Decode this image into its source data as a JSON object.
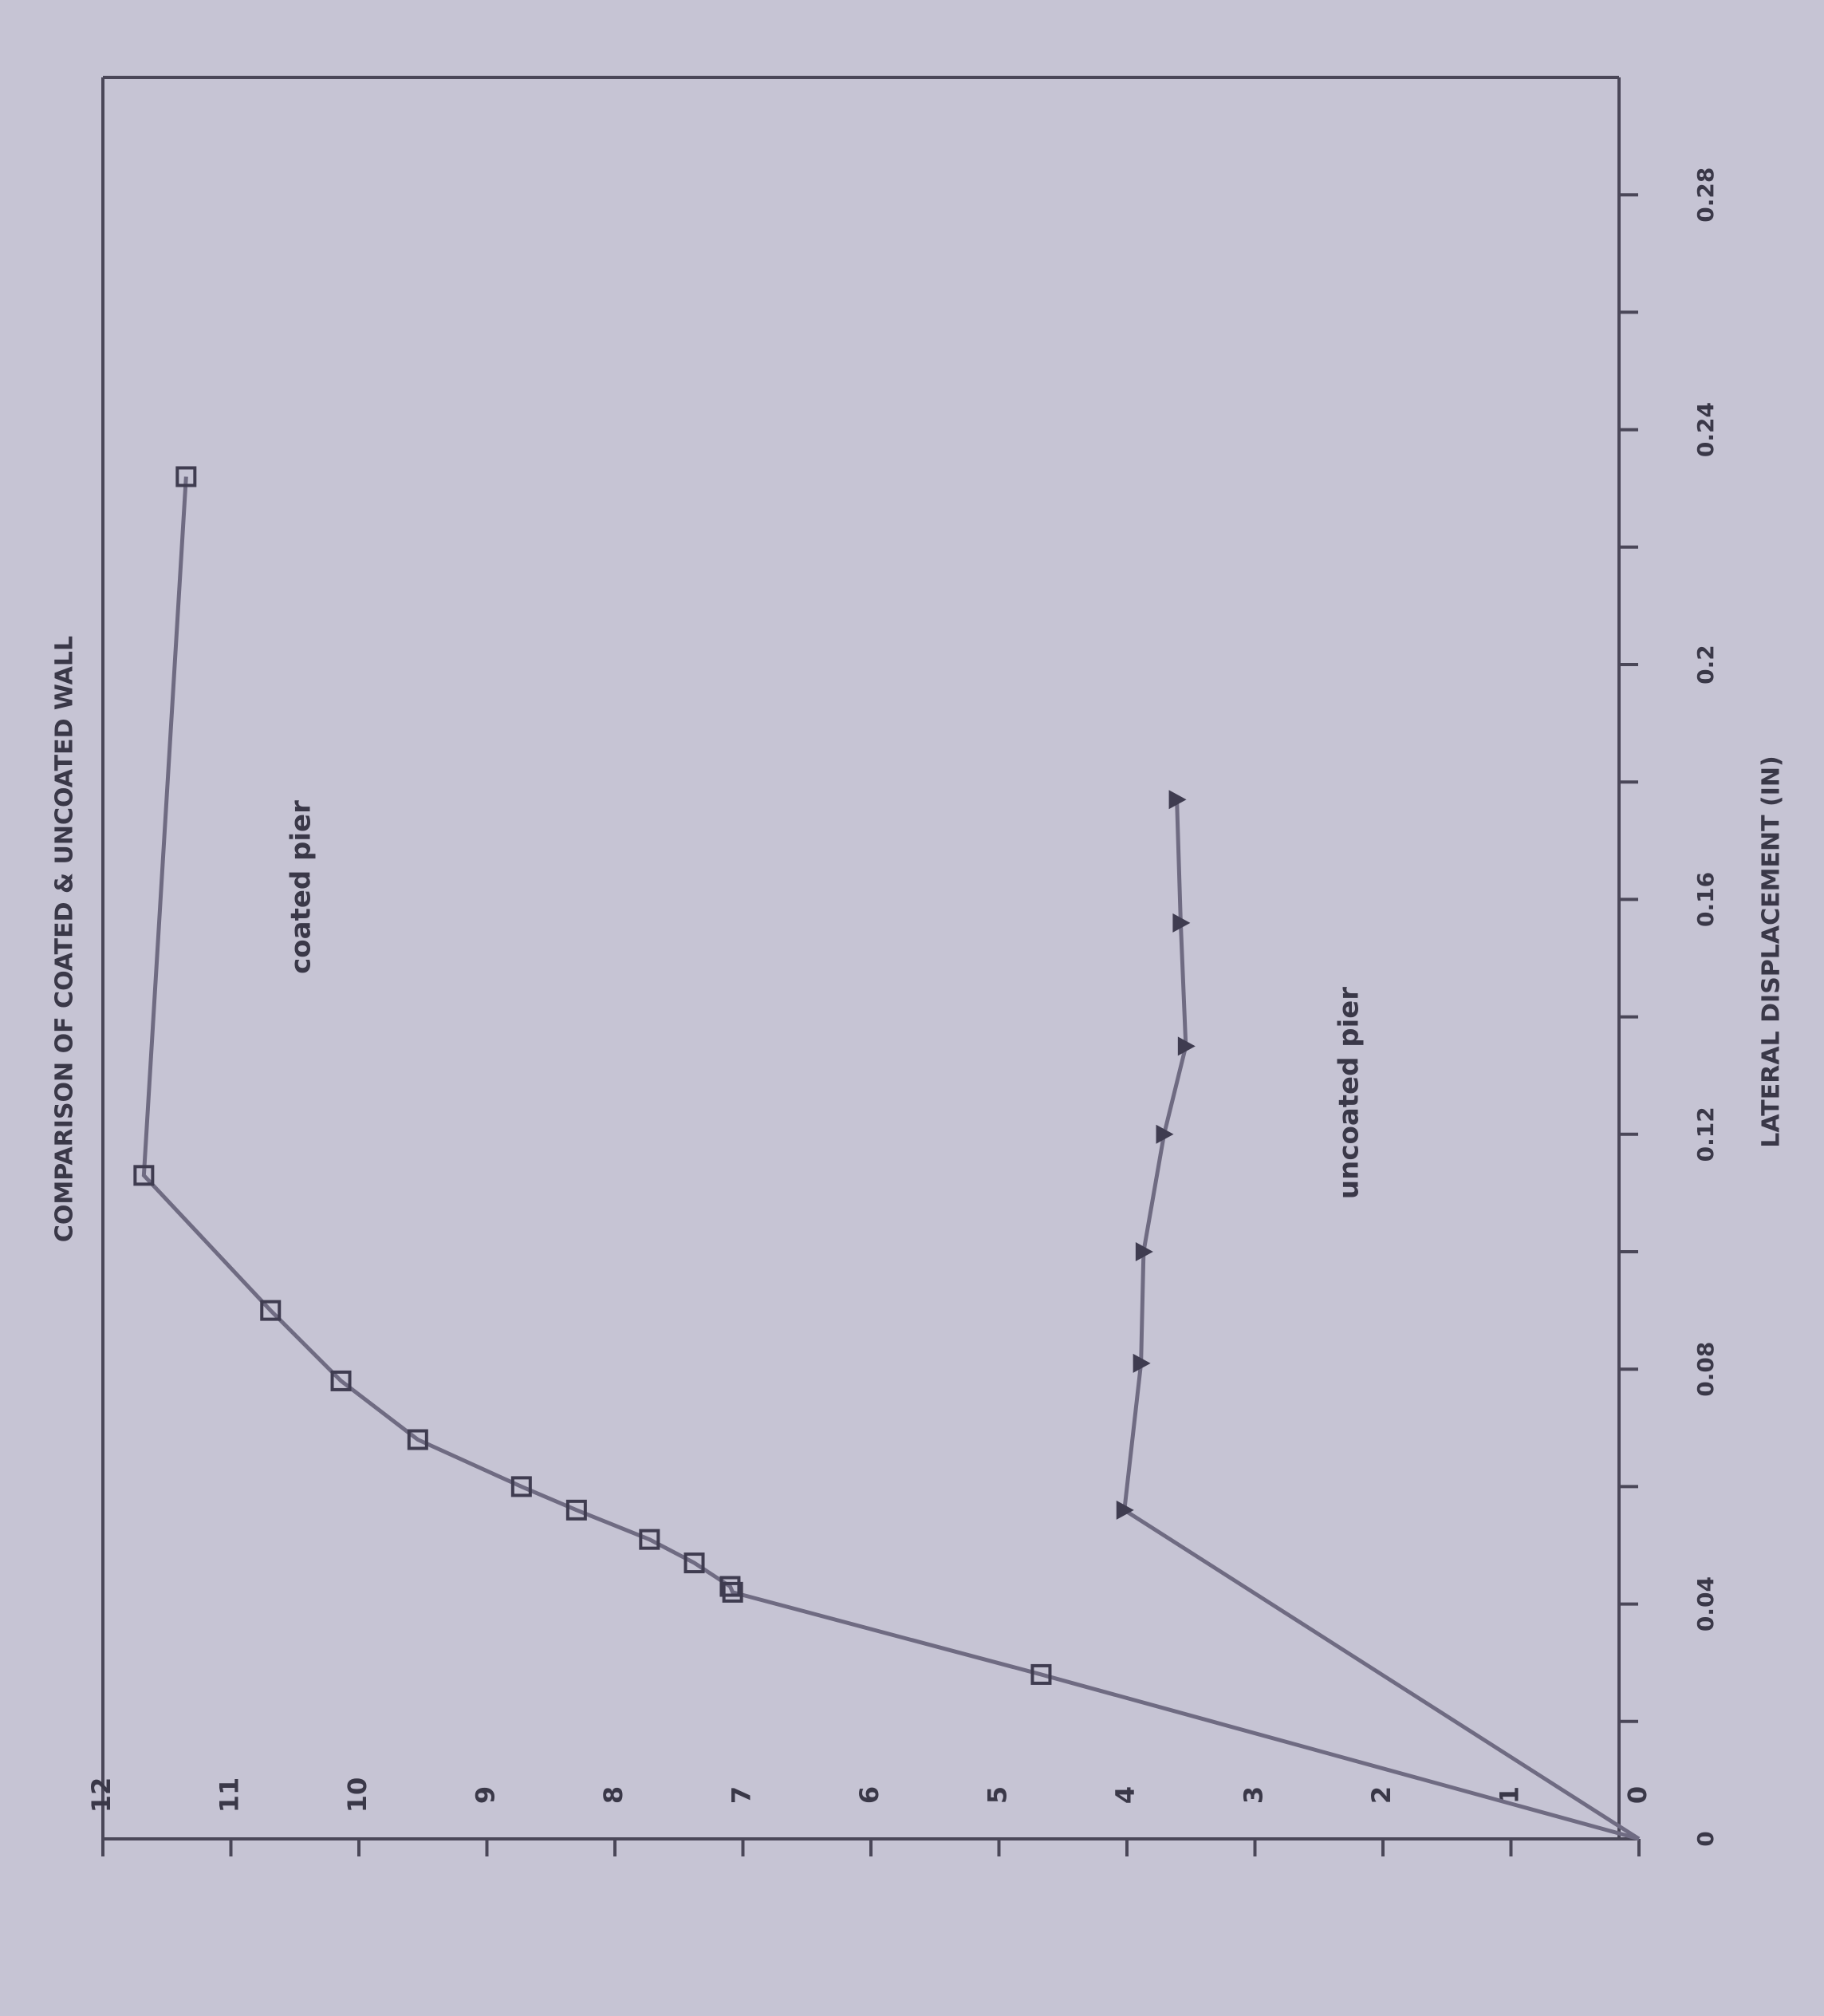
{
  "chart_data": {
    "type": "line",
    "title": "COMPARISON OF COATED & UNCOATED WALL",
    "x_label": "LATERAL DISPLACEMENT (IN)",
    "rotated": true,
    "xlim": [
      0,
      0.3
    ],
    "xticks": [
      0,
      0.04,
      0.08,
      0.12,
      0.16,
      0.2,
      0.24,
      0.28
    ],
    "xminorticks": [
      0.02,
      0.06,
      0.1,
      0.14,
      0.18,
      0.22,
      0.26
    ],
    "ylim": [
      0,
      12
    ],
    "yticks": [
      0,
      1,
      2,
      3,
      4,
      5,
      6,
      7,
      8,
      9,
      10,
      11,
      12
    ],
    "series": [
      {
        "name": "coated pier",
        "color": "#6f6b82",
        "marker": "square",
        "x": [
          0,
          0.028,
          0.042,
          0.043,
          0.047,
          0.051,
          0.056,
          0.06,
          0.068,
          0.078,
          0.09,
          0.113,
          0.232
        ],
        "values": [
          0,
          4.67,
          7.08,
          7.1,
          7.38,
          7.73,
          8.3,
          8.73,
          9.54,
          10.14,
          10.69,
          11.68,
          11.35
        ]
      },
      {
        "name": "uncoated pier",
        "color": "#6f6b82",
        "marker": "triangle",
        "x": [
          0,
          0.056,
          0.081,
          0.1,
          0.12,
          0.135,
          0.156,
          0.177
        ],
        "values": [
          0,
          4.02,
          3.89,
          3.87,
          3.71,
          3.54,
          3.58,
          3.61
        ]
      }
    ]
  }
}
